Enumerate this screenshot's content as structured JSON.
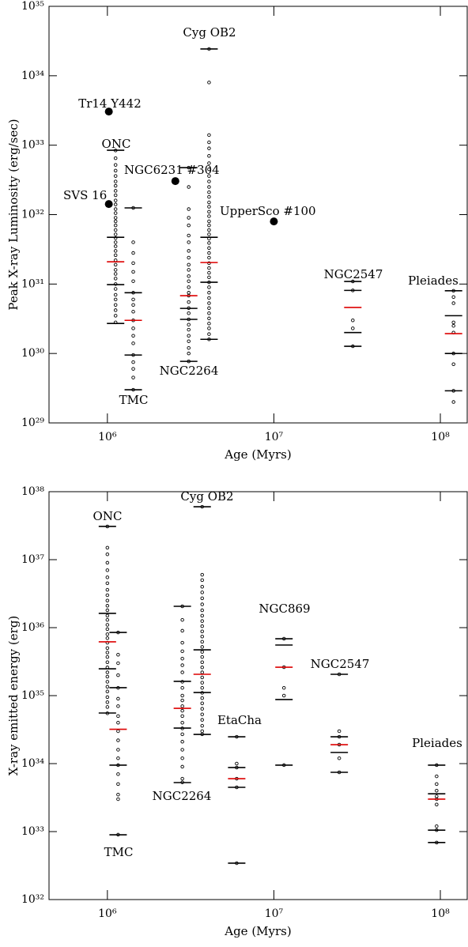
{
  "chart_data": [
    {
      "type": "scatter",
      "xlabel": "Age (Myrs)",
      "ylabel": "Peak X-ray Luminosity (erg/sec)",
      "xscale": "log",
      "yscale": "log",
      "grid": false,
      "xlim": [
        446000,
        145000000
      ],
      "ylim": [
        1e+29,
        1e+35
      ],
      "xticks": [
        {
          "value": 1000000,
          "label": "10⁶"
        },
        {
          "value": 10000000,
          "label": "10⁷"
        },
        {
          "value": 100000000,
          "label": "10⁸"
        }
      ],
      "yticks": [
        {
          "value": 1e+29,
          "label": "10²⁹"
        },
        {
          "value": 1e+30,
          "label": "10³⁰"
        },
        {
          "value": 1e+31,
          "label": "10³¹"
        },
        {
          "value": 1e+32,
          "label": "10³²"
        },
        {
          "value": 1e+33,
          "label": "10³³"
        },
        {
          "value": 1e+34,
          "label": "10³⁴"
        },
        {
          "value": 1e+35,
          "label": "10³⁵"
        }
      ],
      "series": [
        {
          "name": "ONC",
          "color": "#000000",
          "x": 1120000,
          "values": [
            8.4e+32,
            6.5e+32,
            5.2e+32,
            4.3e+32,
            3.6e+32,
            3e+32,
            2.6e+32,
            2.2e+32,
            1.9e+32,
            1.6e+32,
            1.4e+32,
            1.2e+32,
            1.05e+32,
            9e+31,
            8e+31,
            7e+31,
            6e+31,
            5.2e+31,
            4.6e+31,
            4e+31,
            3.5e+31,
            3e+31,
            2.6e+31,
            2.2e+31,
            1.9e+31,
            1.6e+31,
            1.4e+31,
            1.2e+31,
            1e+31,
            8.5e+30,
            7e+30,
            6e+30,
            5e+30,
            4.2e+30,
            3.5e+30,
            2.8e+30
          ],
          "levels": [
            8.45e+32,
            4.72e+31,
            2.09e+31,
            9.8e+30,
            2.71e+30
          ],
          "level_colors": [
            "#000000",
            "#000000",
            "#dd0000",
            "#000000",
            "#000000"
          ]
        },
        {
          "name": "TMC",
          "color": "#000000",
          "x": 1430000,
          "values": [
            1.25e+32,
            4e+31,
            2.8e+31,
            2e+31,
            1.5e+31,
            1.1e+31,
            7.5e+30,
            6e+30,
            5e+30,
            4e+30,
            3e+30,
            2.3e+30,
            1.8e+30,
            1.4e+30,
            9.5e+29,
            7.5e+29,
            6e+29,
            4.5e+29,
            3e+29
          ],
          "levels": [
            1.25e+32,
            7.5e+30,
            3e+30,
            9.5e+29,
            3e+29
          ],
          "level_colors": [
            "#000000",
            "#000000",
            "#dd0000",
            "#000000",
            "#000000"
          ]
        },
        {
          "name": "NGC2264",
          "color": "#000000",
          "x": 3080000,
          "values": [
            4.75e+32,
            2.5e+32,
            1.2e+32,
            9e+31,
            7e+31,
            5e+31,
            4e+31,
            3e+31,
            2.4e+31,
            1.9e+31,
            1.6e+31,
            1.3e+31,
            1.1e+31,
            9e+30,
            7.5e+30,
            6.8e+30,
            5.5e+30,
            4.5e+30,
            3.8e+30,
            3.1e+30,
            2.6e+30,
            2.2e+30,
            1.8e+30,
            1.5e+30,
            1.2e+30,
            1e+30,
            7.7e+29
          ],
          "levels": [
            4.75e+32,
            6.8e+30,
            4.46e+30,
            3.1e+30,
            7.7e+29
          ],
          "level_colors": [
            "#000000",
            "#dd0000",
            "#000000",
            "#000000",
            "#000000"
          ]
        },
        {
          "name": "Cyg OB2",
          "color": "#000000",
          "x": 4080000,
          "values": [
            2.43e+34,
            8e+33,
            1.4e+33,
            1.1e+33,
            9e+32,
            7e+32,
            5.5e+32,
            4.5e+32,
            3.6e+32,
            3e+32,
            2.5e+32,
            2.1e+32,
            1.8e+32,
            1.5e+32,
            1.3e+32,
            1.1e+32,
            9.5e+31,
            8e+31,
            7e+31,
            6e+31,
            5.2e+31,
            4.5e+31,
            3.9e+31,
            3.3e+31,
            2.8e+31,
            2.4e+31,
            2e+31,
            1.7e+31,
            1.45e+31,
            1.25e+31,
            1.06e+31,
            9e+30,
            7.5e+30,
            6.3e+30,
            5.3e+30,
            4.5e+30,
            3.8e+30,
            3.2e+30,
            2.7e+30,
            2.3e+30,
            1.9e+30,
            1.6e+30
          ],
          "levels": [
            2.43e+34,
            4.72e+31,
            2.04e+31,
            1.06e+31,
            1.6e+30
          ],
          "level_colors": [
            "#000000",
            "#000000",
            "#dd0000",
            "#000000",
            "#000000"
          ]
        },
        {
          "name": "NGC2547",
          "color": "#000000",
          "x": 29800000,
          "values": [
            1.09e+31,
            8.1e+30,
            3e+30,
            2.3e+30,
            1.27e+30
          ],
          "levels": [
            1.09e+31,
            8.1e+30,
            4.6e+30,
            2e+30,
            1.27e+30
          ],
          "level_colors": [
            "#000000",
            "#000000",
            "#dd0000",
            "#000000",
            "#000000"
          ]
        },
        {
          "name": "Pleiades",
          "color": "#000000",
          "x": 120000000,
          "values": [
            8e+30,
            6.5e+30,
            5.3e+30,
            2.8e+30,
            2.5e+30,
            2e+30,
            1e+30,
            7e+29,
            2.9e+29,
            2e+29
          ],
          "levels": [
            8e+30,
            3.5e+30,
            1.93e+30,
            1e+30,
            2.9e+29
          ],
          "level_colors": [
            "#000000",
            "#000000",
            "#dd0000",
            "#000000",
            "#000000"
          ]
        }
      ],
      "highlights": [
        {
          "name": "Tr14 Y442",
          "x": 1020000,
          "y": 3.05e+33
        },
        {
          "name": "SVS 16",
          "x": 1020000,
          "y": 1.42e+32
        },
        {
          "name": "NGC6231 #304",
          "x": 2560000,
          "y": 3.04e+32
        },
        {
          "name": "UpperSco #100",
          "x": 10000000,
          "y": 7.98e+31
        }
      ]
    },
    {
      "type": "scatter",
      "xlabel": "Age (Myrs)",
      "ylabel": "X-ray emitted energy (erg)",
      "xscale": "log",
      "yscale": "log",
      "grid": false,
      "xlim": [
        446000,
        145000000
      ],
      "ylim": [
        1e+32,
        1e+38
      ],
      "xticks": [
        {
          "value": 1000000,
          "label": "10⁶"
        },
        {
          "value": 10000000,
          "label": "10⁷"
        },
        {
          "value": 100000000,
          "label": "10⁸"
        }
      ],
      "yticks": [
        {
          "value": 1e+32,
          "label": "10³²"
        },
        {
          "value": 1e+33,
          "label": "10³³"
        },
        {
          "value": 1e+34,
          "label": "10³⁴"
        },
        {
          "value": 1e+35,
          "label": "10³⁵"
        },
        {
          "value": 1e+36,
          "label": "10³⁶"
        },
        {
          "value": 1e+37,
          "label": "10³⁷"
        },
        {
          "value": 1e+38,
          "label": "10³⁸"
        }
      ],
      "series": [
        {
          "name": "ONC",
          "color": "#000000",
          "x": 1000000,
          "values": [
            3.08e+37,
            1.5e+37,
            1.2e+37,
            9e+36,
            7e+36,
            5.5e+36,
            4.5e+36,
            3.6e+36,
            3e+36,
            2.5e+36,
            2.1e+36,
            1.8e+36,
            1.5e+36,
            1.3e+36,
            1.1e+36,
            9.5e+35,
            8e+35,
            7e+35,
            6e+35,
            5e+35,
            4.3e+35,
            3.7e+35,
            3.1e+35,
            2.6e+35,
            2.2e+35,
            1.9e+35,
            1.6e+35,
            1.35e+35,
            1.15e+35,
            9.5e+34,
            8e+34,
            6.8e+34,
            5.5e+34
          ],
          "levels": [
            3.08e+37,
            1.62e+36,
            6.18e+35,
            2.48e+35,
            5.55e+34
          ],
          "level_colors": [
            "#000000",
            "#000000",
            "#dd0000",
            "#000000",
            "#000000"
          ]
        },
        {
          "name": "TMC",
          "color": "#000000",
          "x": 1160000,
          "values": [
            8.5e+35,
            4e+35,
            3e+35,
            2e+35,
            1.3e+35,
            9e+34,
            7e+34,
            5e+34,
            4e+34,
            3e+34,
            2.2e+34,
            1.6e+34,
            1.2e+34,
            9.5e+33,
            7e+33,
            5e+33,
            3.5e+33,
            3e+33,
            9e+32
          ],
          "levels": [
            8.5e+35,
            1.31e+35,
            3.2e+34,
            9.5e+33,
            8.98e+32
          ],
          "level_colors": [
            "#000000",
            "#000000",
            "#dd0000",
            "#000000",
            "#000000"
          ]
        },
        {
          "name": "NGC2264",
          "color": "#000000",
          "x": 2820000,
          "values": [
            2.06e+36,
            1.3e+36,
            9e+35,
            6e+35,
            4.5e+35,
            3.5e+35,
            2.8e+35,
            2.2e+35,
            1.6e+35,
            1.3e+35,
            1e+35,
            8.5e+34,
            7e+34,
            6e+34,
            5e+34,
            4e+34,
            3.3e+34,
            2.7e+34,
            2.1e+34,
            1.6e+34,
            1.2e+34,
            9e+33,
            6e+33,
            5.3e+33
          ],
          "levels": [
            2.06e+36,
            1.62e+35,
            6.5e+34,
            3.33e+34,
            5.26e+33
          ],
          "level_colors": [
            "#000000",
            "#000000",
            "#dd0000",
            "#000000",
            "#000000"
          ]
        },
        {
          "name": "Cyg OB2",
          "color": "#000000",
          "x": 3710000,
          "values": [
            6e+37,
            6e+36,
            5e+36,
            4e+36,
            3.3e+36,
            2.7e+36,
            2.2e+36,
            1.8e+36,
            1.5e+36,
            1.25e+36,
            1.05e+36,
            8.8e+35,
            7.4e+35,
            6.2e+35,
            5.2e+35,
            4.4e+35,
            3.7e+35,
            3.1e+35,
            2.6e+35,
            2.2e+35,
            1.85e+35,
            1.55e+35,
            1.3e+35,
            1.1e+35,
            9.2e+34,
            7.7e+34,
            6.4e+34,
            5.3e+34,
            4.4e+34,
            3.6e+34,
            3e+34,
            2.7e+34
          ],
          "levels": [
            6e+37,
            4.72e+35,
            2.06e+35,
            1.11e+35,
            2.69e+34
          ],
          "level_colors": [
            "#000000",
            "#000000",
            "#dd0000",
            "#000000",
            "#000000"
          ]
        },
        {
          "name": "EtaCha",
          "color": "#000000",
          "x": 5980000,
          "values": [
            2.48e+34,
            1e+34,
            8.75e+33,
            6e+33,
            4.48e+33,
            3.43e+32
          ],
          "levels": [
            2.48e+34,
            8.75e+33,
            6e+33,
            4.48e+33,
            3.43e+32
          ],
          "level_colors": [
            "#000000",
            "#000000",
            "#dd0000",
            "#000000",
            "#000000"
          ]
        },
        {
          "name": "NGC869",
          "color": "#000000",
          "x": 11500000,
          "values": [
            6.87e+35,
            2.62e+35,
            1.3e+35,
            1e+35,
            9.5e+33
          ],
          "levels": [
            6.87e+35,
            5.55e+35,
            2.62e+35,
            8.75e+34,
            9.5e+33
          ],
          "level_colors": [
            "#000000",
            "#000000",
            "#dd0000",
            "#000000",
            "#000000"
          ]
        },
        {
          "name": "NGC2547",
          "color": "#000000",
          "x": 24700000,
          "values": [
            2.06e+35,
            3e+34,
            2.48e+34,
            1.9e+34,
            1.2e+34,
            7.45e+33
          ],
          "levels": [
            2.06e+35,
            2.48e+34,
            1.9e+34,
            1.46e+34,
            7.45e+33
          ],
          "level_colors": [
            "#000000",
            "#000000",
            "#dd0000",
            "#000000",
            "#000000"
          ]
        },
        {
          "name": "Pleiades",
          "color": "#000000",
          "x": 95000000,
          "values": [
            9.5e+33,
            6.5e+33,
            5e+33,
            4e+33,
            3.3e+33,
            3e+33,
            2.5e+33,
            1.2e+33,
            1.05e+33,
            6.9e+32
          ],
          "levels": [
            9.5e+33,
            3.6e+33,
            3e+33,
            1.05e+33,
            6.9e+32
          ],
          "level_colors": [
            "#000000",
            "#000000",
            "#dd0000",
            "#000000",
            "#000000"
          ]
        }
      ]
    }
  ]
}
